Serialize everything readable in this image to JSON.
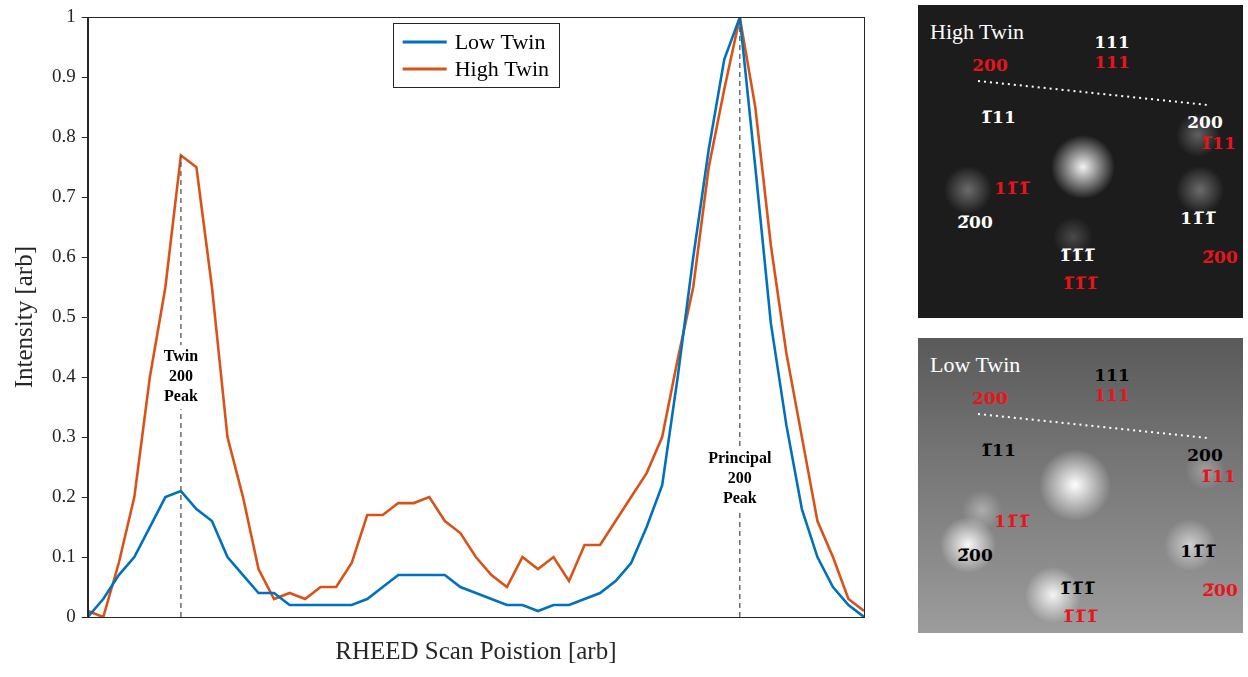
{
  "chart_data": {
    "type": "line",
    "x_label": "RHEED Scan Poistion [arb]",
    "y_label": "Intensity [arb]",
    "x": [
      0,
      2,
      4,
      6,
      8,
      10,
      12,
      14,
      16,
      18,
      20,
      22,
      24,
      26,
      28,
      30,
      32,
      34,
      36,
      38,
      40,
      42,
      44,
      46,
      48,
      50,
      52,
      54,
      56,
      58,
      60,
      62,
      64,
      66,
      68,
      70,
      72,
      74,
      76,
      78,
      80,
      82,
      84,
      86,
      88,
      90,
      92,
      94,
      96,
      98,
      100
    ],
    "xlim": [
      0,
      100
    ],
    "ylim": [
      0,
      1
    ],
    "yticks": [
      0,
      0.1,
      0.2,
      0.3,
      0.4,
      0.5,
      0.6,
      0.7,
      0.8,
      0.9,
      1
    ],
    "grid": false,
    "legend": "upper center",
    "tick_labels": "y",
    "series": [
      {
        "name": "Low Twin",
        "color": "#0072bd",
        "values": [
          0.0,
          0.03,
          0.07,
          0.1,
          0.15,
          0.2,
          0.21,
          0.18,
          0.16,
          0.1,
          0.07,
          0.04,
          0.04,
          0.02,
          0.02,
          0.02,
          0.02,
          0.02,
          0.03,
          0.05,
          0.07,
          0.07,
          0.07,
          0.07,
          0.05,
          0.04,
          0.03,
          0.02,
          0.02,
          0.01,
          0.02,
          0.02,
          0.03,
          0.04,
          0.06,
          0.09,
          0.15,
          0.22,
          0.4,
          0.6,
          0.78,
          0.93,
          1.0,
          0.75,
          0.49,
          0.32,
          0.18,
          0.1,
          0.05,
          0.02,
          0.0
        ]
      },
      {
        "name": "High Twin",
        "color": "#d95319",
        "values": [
          0.01,
          0.0,
          0.09,
          0.2,
          0.4,
          0.55,
          0.77,
          0.75,
          0.55,
          0.3,
          0.2,
          0.08,
          0.03,
          0.04,
          0.03,
          0.05,
          0.05,
          0.09,
          0.17,
          0.17,
          0.19,
          0.19,
          0.2,
          0.16,
          0.14,
          0.1,
          0.07,
          0.05,
          0.1,
          0.08,
          0.1,
          0.06,
          0.12,
          0.12,
          0.16,
          0.2,
          0.24,
          0.3,
          0.43,
          0.55,
          0.75,
          0.88,
          1.0,
          0.85,
          0.62,
          0.44,
          0.3,
          0.16,
          0.1,
          0.03,
          0.01
        ]
      }
    ],
    "annotations": [
      {
        "text": "Twin 200 Peak",
        "x": 12,
        "y": 0.4
      },
      {
        "text": "Principal 200 Peak",
        "x": 84,
        "y": 0.23
      }
    ]
  },
  "panels": [
    {
      "title": "High Twin",
      "labels": [
        {
          "text": "111",
          "color": "#ffffff"
        },
        {
          "text": "111",
          "color": "#e8141c"
        },
        {
          "text": "200",
          "color": "#e8141c"
        },
        {
          "text": "1̅11",
          "color": "#ffffff"
        },
        {
          "text": "200",
          "color": "#ffffff"
        },
        {
          "text": "1̅11",
          "color": "#e8141c"
        },
        {
          "text": "11̅1̅",
          "color": "#e8141c"
        },
        {
          "text": "2̅00",
          "color": "#ffffff"
        },
        {
          "text": "11̅1̅",
          "color": "#ffffff"
        },
        {
          "text": "2̅00",
          "color": "#e8141c"
        },
        {
          "text": "1̅1̅1̅",
          "color": "#ffffff"
        },
        {
          "text": "1̅1̅1̅",
          "color": "#e8141c"
        }
      ]
    },
    {
      "title": "Low Twin",
      "labels": [
        {
          "text": "111",
          "color": "#000000"
        },
        {
          "text": "111",
          "color": "#e8141c"
        },
        {
          "text": "200",
          "color": "#e8141c"
        },
        {
          "text": "1̅11",
          "color": "#000000"
        },
        {
          "text": "200",
          "color": "#000000"
        },
        {
          "text": "1̅11",
          "color": "#e8141c"
        },
        {
          "text": "11̅1̅",
          "color": "#e8141c"
        },
        {
          "text": "2̅00",
          "color": "#000000"
        },
        {
          "text": "11̅1̅",
          "color": "#000000"
        },
        {
          "text": "2̅00",
          "color": "#e8141c"
        },
        {
          "text": "1̅1̅1̅",
          "color": "#000000"
        },
        {
          "text": "1̅1̅1̅",
          "color": "#e8141c"
        }
      ]
    }
  ]
}
